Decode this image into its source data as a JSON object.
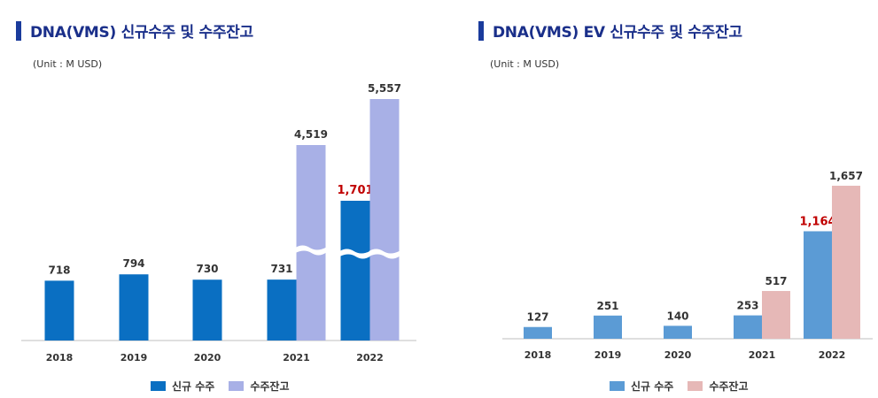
{
  "left": {
    "title": "DNA(VMS) 신규수주 및 수주잔고",
    "unit": "(Unit : M USD)",
    "legend": [
      "신규 수주",
      "수주잔고"
    ]
  },
  "right": {
    "title": "DNA(VMS) EV 신규수주 및 수주잔고",
    "unit": "(Unit : M USD)",
    "legend": [
      "신규 수주",
      "수주잔고"
    ]
  },
  "colors": {
    "title_bar": "#1a3b9c",
    "left_new": "#0a6fc2",
    "left_backlog": "#a8b0e6",
    "right_new": "#5b9bd5",
    "right_backlog": "#e6b8b7",
    "highlight_label": "#c00000"
  },
  "chart_data": [
    {
      "type": "bar",
      "title": "DNA(VMS) 신규수주 및 수주잔고",
      "categories": [
        "2018",
        "2019",
        "2020",
        "2021",
        "2022"
      ],
      "series": [
        {
          "name": "신규 수주",
          "values": [
            718,
            794,
            730,
            731,
            1701
          ]
        },
        {
          "name": "수주잔고",
          "values": [
            null,
            null,
            null,
            4519,
            5557
          ]
        }
      ],
      "value_labels": {
        "신규 수주": [
          "718",
          "794",
          "730",
          "731",
          "1,701"
        ],
        "수주잔고": [
          null,
          null,
          null,
          "4,519",
          "5,557"
        ]
      },
      "highlight": {
        "series": "신규 수주",
        "category": "2022"
      },
      "axis_break": true,
      "legend": "bottom"
    },
    {
      "type": "bar",
      "title": "DNA(VMS) EV 신규수주 및 수주잔고",
      "categories": [
        "2018",
        "2019",
        "2020",
        "2021",
        "2022"
      ],
      "series": [
        {
          "name": "신규 수주",
          "values": [
            127,
            251,
            140,
            253,
            1164
          ]
        },
        {
          "name": "수주잔고",
          "values": [
            null,
            null,
            null,
            517,
            1657
          ]
        }
      ],
      "value_labels": {
        "신규 수주": [
          "127",
          "251",
          "140",
          "253",
          "1,164"
        ],
        "수주잔고": [
          null,
          null,
          null,
          "517",
          "1,657"
        ]
      },
      "highlight": {
        "series": "신규 수주",
        "category": "2022"
      },
      "legend": "bottom"
    }
  ]
}
